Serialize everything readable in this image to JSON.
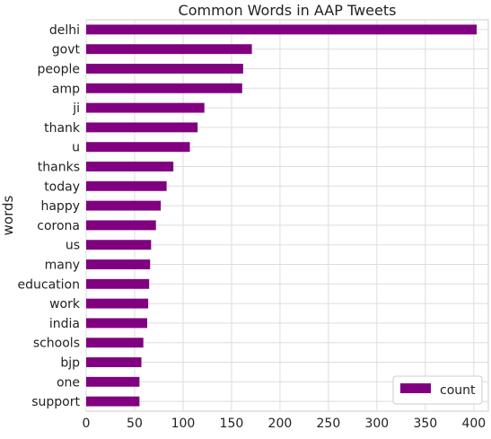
{
  "chart_data": {
    "type": "bar",
    "orientation": "horizontal",
    "title": "Common Words in AAP Tweets",
    "xlabel": "",
    "ylabel": "words",
    "categories": [
      "delhi",
      "govt",
      "people",
      "amp",
      "ji",
      "thank",
      "u",
      "thanks",
      "today",
      "happy",
      "corona",
      "us",
      "many",
      "education",
      "work",
      "india",
      "schools",
      "bjp",
      "one",
      "support"
    ],
    "series": [
      {
        "name": "count",
        "color": "#800080",
        "values": [
          403,
          171,
          162,
          161,
          122,
          115,
          107,
          90,
          83,
          77,
          72,
          67,
          66,
          65,
          64,
          63,
          59,
          57,
          55,
          55
        ]
      }
    ],
    "xlim": [
      0,
      415
    ],
    "xticks": [
      0,
      50,
      100,
      150,
      200,
      250,
      300,
      350,
      400
    ],
    "grid": true,
    "legend_position": "bottom-right"
  }
}
